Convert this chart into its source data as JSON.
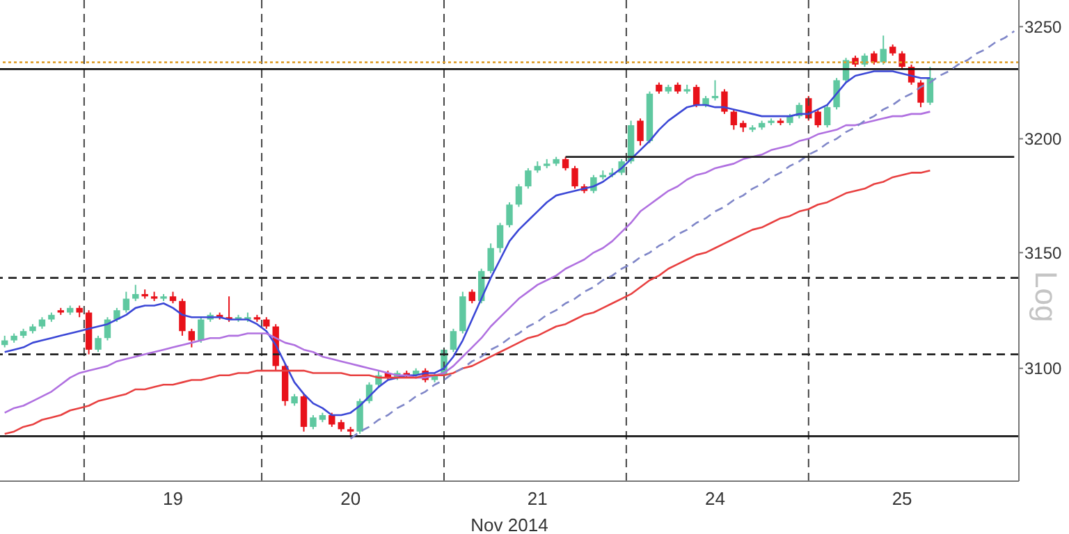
{
  "chart_data": {
    "type": "candlestick",
    "xlabel": "Nov 2014",
    "log": true,
    "annotations": [
      "Log"
    ],
    "categories": [
      null,
      null,
      null,
      null,
      null,
      null,
      null,
      null,
      null,
      null,
      null,
      null,
      null,
      null,
      null,
      null,
      null,
      null,
      "19",
      null,
      null,
      null,
      null,
      null,
      null,
      null,
      null,
      null,
      null,
      null,
      null,
      null,
      null,
      null,
      null,
      null,
      null,
      "20",
      null,
      null,
      null,
      null,
      null,
      null,
      null,
      null,
      null,
      null,
      null,
      null,
      null,
      null,
      null,
      null,
      null,
      null,
      null,
      "21",
      null,
      null,
      null,
      null,
      null,
      null,
      null,
      null,
      null,
      null,
      null,
      null,
      null,
      null,
      null,
      null,
      null,
      null,
      "24",
      null,
      null,
      null,
      null,
      null,
      null,
      null,
      null,
      null,
      null,
      null,
      null,
      null,
      null,
      null,
      null,
      null,
      null,
      null,
      "25",
      null,
      null,
      null,
      null,
      null,
      null,
      null,
      null,
      null,
      null,
      null,
      null
    ],
    "ylim": [
      3052,
      3262
    ],
    "yticks": [
      3100,
      3150,
      3200,
      3250
    ],
    "ohlc": [
      [
        3110,
        3114,
        3109,
        3112
      ],
      [
        3112,
        3115,
        3111,
        3114
      ],
      [
        3114,
        3117,
        3113,
        3116
      ],
      [
        3116,
        3119,
        3115,
        3118
      ],
      [
        3118,
        3122,
        3117,
        3121
      ],
      [
        3121,
        3124,
        3120,
        3123
      ],
      [
        3125,
        3126,
        3123,
        3124
      ],
      [
        3124,
        3127,
        3123,
        3126
      ],
      [
        3126,
        3127,
        3122,
        3124
      ],
      [
        3124,
        3125,
        3106,
        3108
      ],
      [
        3108,
        3114,
        3107,
        3113
      ],
      [
        3113,
        3122,
        3112,
        3121
      ],
      [
        3121,
        3126,
        3120,
        3125
      ],
      [
        3125,
        3133,
        3124,
        3130
      ],
      [
        3130,
        3136,
        3129,
        3132
      ],
      [
        3132,
        3134,
        3130,
        3131
      ],
      [
        3131,
        3133,
        3129,
        3130
      ],
      [
        3130,
        3132,
        3129,
        3131
      ],
      [
        3131,
        3133,
        3128,
        3129
      ],
      [
        3129,
        3130,
        3114,
        3116
      ],
      [
        3116,
        3117,
        3109,
        3112
      ],
      [
        3112,
        3122,
        3111,
        3121
      ],
      [
        3121,
        3124,
        3120,
        3123
      ],
      [
        3123,
        3124,
        3121,
        3122
      ],
      [
        3122,
        3131,
        3120,
        3121
      ],
      [
        3121,
        3123,
        3120,
        3122
      ],
      [
        3121,
        3124,
        3120,
        3122
      ],
      [
        3122,
        3123,
        3120,
        3121
      ],
      [
        3121,
        3122,
        3117,
        3118
      ],
      [
        3118,
        3119,
        3099,
        3101
      ],
      [
        3101,
        3102,
        3084,
        3086
      ],
      [
        3085,
        3089,
        3084,
        3088
      ],
      [
        3088,
        3089,
        3073,
        3075
      ],
      [
        3075,
        3080,
        3074,
        3079
      ],
      [
        3078,
        3081,
        3077,
        3080
      ],
      [
        3080,
        3081,
        3075,
        3076
      ],
      [
        3077,
        3078,
        3073,
        3074
      ],
      [
        3074,
        3075,
        3071,
        3073
      ],
      [
        3073,
        3087,
        3072,
        3086
      ],
      [
        3086,
        3094,
        3085,
        3093
      ],
      [
        3093,
        3099,
        3092,
        3097
      ],
      [
        3098,
        3099,
        3095,
        3096
      ],
      [
        3096,
        3099,
        3095,
        3098
      ],
      [
        3098,
        3099,
        3096,
        3097
      ],
      [
        3097,
        3100,
        3096,
        3099
      ],
      [
        3099,
        3100,
        3094,
        3095
      ],
      [
        3095,
        3098,
        3094,
        3097
      ],
      [
        3097,
        3109,
        3096,
        3108
      ],
      [
        3108,
        3117,
        3107,
        3116
      ],
      [
        3116,
        3133,
        3115,
        3131
      ],
      [
        3133,
        3134,
        3128,
        3129
      ],
      [
        3129,
        3143,
        3128,
        3142
      ],
      [
        3142,
        3154,
        3141,
        3152
      ],
      [
        3152,
        3163,
        3150,
        3162
      ],
      [
        3162,
        3172,
        3161,
        3171
      ],
      [
        3171,
        3180,
        3170,
        3179
      ],
      [
        3179,
        3187,
        3178,
        3186
      ],
      [
        3186,
        3190,
        3185,
        3188
      ],
      [
        3188,
        3191,
        3187,
        3189
      ],
      [
        3189,
        3192,
        3188,
        3191
      ],
      [
        3191,
        3192,
        3186,
        3187
      ],
      [
        3187,
        3188,
        3178,
        3179
      ],
      [
        3179,
        3180,
        3176,
        3177
      ],
      [
        3177,
        3184,
        3176,
        3183
      ],
      [
        3183,
        3186,
        3182,
        3184
      ],
      [
        3184,
        3187,
        3183,
        3185
      ],
      [
        3185,
        3191,
        3184,
        3190
      ],
      [
        3190,
        3208,
        3189,
        3206
      ],
      [
        3208,
        3209,
        3197,
        3199
      ],
      [
        3199,
        3221,
        3198,
        3220
      ],
      [
        3224,
        3225,
        3220,
        3221
      ],
      [
        3221,
        3224,
        3220,
        3223
      ],
      [
        3224,
        3225,
        3220,
        3221
      ],
      [
        3221,
        3224,
        3220,
        3222
      ],
      [
        3223,
        3224,
        3214,
        3215
      ],
      [
        3215,
        3219,
        3214,
        3218
      ],
      [
        3218,
        3226,
        3217,
        3219
      ],
      [
        3221,
        3222,
        3211,
        3212
      ],
      [
        3212,
        3213,
        3204,
        3206
      ],
      [
        3207,
        3208,
        3203,
        3205
      ],
      [
        3204,
        3206,
        3203,
        3205
      ],
      [
        3205,
        3208,
        3204,
        3207
      ],
      [
        3207,
        3209,
        3206,
        3208
      ],
      [
        3208,
        3209,
        3206,
        3207
      ],
      [
        3207,
        3211,
        3206,
        3210
      ],
      [
        3210,
        3216,
        3209,
        3215
      ],
      [
        3218,
        3219,
        3208,
        3209
      ],
      [
        3212,
        3213,
        3205,
        3206
      ],
      [
        3206,
        3215,
        3205,
        3214
      ],
      [
        3214,
        3227,
        3213,
        3226
      ],
      [
        3226,
        3236,
        3225,
        3235
      ],
      [
        3236,
        3237,
        3232,
        3233
      ],
      [
        3233,
        3238,
        3232,
        3237
      ],
      [
        3238,
        3239,
        3233,
        3234
      ],
      [
        3234,
        3246,
        3233,
        3240
      ],
      [
        3241,
        3242,
        3237,
        3238
      ],
      [
        3238,
        3239,
        3231,
        3232
      ],
      [
        3232,
        3233,
        3224,
        3225
      ],
      [
        3225,
        3226,
        3214,
        3216
      ],
      [
        3216,
        3232,
        3215,
        3227
      ],
      null,
      null,
      null,
      null,
      null,
      null,
      null,
      null,
      null
    ],
    "colors": [
      "#5fc8a0",
      "#5fc8a0",
      "#5fc8a0",
      "#5fc8a0",
      "#5fc8a0",
      "#5fc8a0",
      "#e8121a",
      "#5fc8a0",
      "#e8121a",
      "#e8121a",
      "#5fc8a0",
      "#5fc8a0",
      "#5fc8a0",
      "#5fc8a0",
      "#5fc8a0",
      "#e8121a",
      "#e8121a",
      "#5fc8a0",
      "#e8121a",
      "#e8121a",
      "#e8121a",
      "#5fc8a0",
      "#5fc8a0",
      "#e8121a",
      "#e8121a",
      "#5fc8a0",
      "#5fc8a0",
      "#e8121a",
      "#e8121a",
      "#e8121a",
      "#e8121a",
      "#5fc8a0",
      "#e8121a",
      "#5fc8a0",
      "#5fc8a0",
      "#e8121a",
      "#e8121a",
      "#e8121a",
      "#5fc8a0",
      "#5fc8a0",
      "#5fc8a0",
      "#e8121a",
      "#5fc8a0",
      "#e8121a",
      "#5fc8a0",
      "#e8121a",
      "#5fc8a0",
      "#5fc8a0",
      "#5fc8a0",
      "#5fc8a0",
      "#e8121a",
      "#5fc8a0",
      "#5fc8a0",
      "#5fc8a0",
      "#5fc8a0",
      "#5fc8a0",
      "#5fc8a0",
      "#5fc8a0",
      "#5fc8a0",
      "#5fc8a0",
      "#e8121a",
      "#e8121a",
      "#e8121a",
      "#5fc8a0",
      "#5fc8a0",
      "#5fc8a0",
      "#5fc8a0",
      "#5fc8a0",
      "#e8121a",
      "#5fc8a0",
      "#e8121a",
      "#5fc8a0",
      "#e8121a",
      "#5fc8a0",
      "#e8121a",
      "#5fc8a0",
      "#5fc8a0",
      "#e8121a",
      "#e8121a",
      "#e8121a",
      "#5fc8a0",
      "#5fc8a0",
      "#5fc8a0",
      "#e8121a",
      "#5fc8a0",
      "#5fc8a0",
      "#e8121a",
      "#e8121a",
      "#5fc8a0",
      "#5fc8a0",
      "#5fc8a0",
      "#e8121a",
      "#5fc8a0",
      "#e8121a",
      "#5fc8a0",
      "#e8121a",
      "#e8121a",
      "#e8121a",
      "#e8121a",
      "#5fc8a0",
      null,
      null,
      null,
      null,
      null,
      null,
      null,
      null,
      null
    ],
    "series": [
      {
        "type": "line",
        "color": "#3b47d6",
        "values": [
          3107,
          3108,
          3109,
          3111,
          3112,
          3113,
          3114,
          3115,
          3116,
          3117,
          3118,
          3119,
          3121,
          3123,
          3126,
          3127,
          3127,
          3128,
          3126,
          3123,
          3122,
          3122,
          3122,
          3122,
          3121,
          3121,
          3121,
          3119,
          3116,
          3110,
          3102,
          3094,
          3089,
          3085,
          3083,
          3080,
          3080,
          3081,
          3084,
          3088,
          3092,
          3095,
          3096,
          3097,
          3097,
          3098,
          3098,
          3100,
          3105,
          3112,
          3121,
          3130,
          3139,
          3147,
          3155,
          3160,
          3164,
          3168,
          3172,
          3175,
          3176,
          3177,
          3178,
          3179,
          3181,
          3184,
          3187,
          3191,
          3195,
          3199,
          3204,
          3208,
          3211,
          3214,
          3215,
          3215,
          3214,
          3214,
          3213,
          3212,
          3211,
          3210,
          3210,
          3210,
          3210,
          3211,
          3211,
          3213,
          3215,
          3220,
          3225,
          3228,
          3229,
          3230,
          3230,
          3230,
          3229,
          3228,
          3227,
          3227,
          null,
          null,
          null,
          null,
          null,
          null,
          null,
          null,
          null
        ]
      },
      {
        "type": "line",
        "color": "#b070e0",
        "values": [
          3081,
          3083,
          3084,
          3086,
          3088,
          3090,
          3093,
          3096,
          3098,
          3099,
          3100,
          3101,
          3103,
          3104,
          3105,
          3106,
          3107,
          3108,
          3109,
          3110,
          3111,
          3112,
          3113,
          3113,
          3114,
          3114,
          3115,
          3115,
          3115,
          3113,
          3111,
          3110,
          3108,
          3107,
          3105,
          3104,
          3103,
          3102,
          3101,
          3100,
          3099,
          3098,
          3097,
          3097,
          3096,
          3096,
          3097,
          3098,
          3101,
          3105,
          3109,
          3113,
          3118,
          3122,
          3126,
          3130,
          3133,
          3136,
          3138,
          3140,
          3143,
          3145,
          3147,
          3150,
          3152,
          3155,
          3159,
          3163,
          3168,
          3171,
          3174,
          3177,
          3179,
          3182,
          3184,
          3185,
          3187,
          3188,
          3189,
          3191,
          3192,
          3193,
          3195,
          3196,
          3197,
          3199,
          3200,
          3202,
          3203,
          3204,
          3206,
          3206,
          3207,
          3208,
          3209,
          3210,
          3210,
          3211,
          3211,
          3212,
          null,
          null,
          null,
          null,
          null,
          null,
          null,
          null,
          null
        ]
      },
      {
        "type": "line",
        "color": "#e84040",
        "values": [
          3072,
          3073,
          3075,
          3076,
          3078,
          3079,
          3080,
          3082,
          3083,
          3084,
          3086,
          3087,
          3088,
          3089,
          3091,
          3091,
          3092,
          3093,
          3093,
          3094,
          3095,
          3095,
          3096,
          3097,
          3097,
          3098,
          3098,
          3099,
          3099,
          3099,
          3099,
          3099,
          3099,
          3098,
          3098,
          3098,
          3098,
          3097,
          3097,
          3097,
          3096,
          3096,
          3096,
          3096,
          3096,
          3097,
          3097,
          3097,
          3098,
          3100,
          3101,
          3103,
          3105,
          3107,
          3109,
          3111,
          3113,
          3114,
          3116,
          3118,
          3119,
          3121,
          3123,
          3124,
          3126,
          3128,
          3130,
          3132,
          3135,
          3138,
          3140,
          3143,
          3145,
          3147,
          3149,
          3150,
          3152,
          3154,
          3156,
          3158,
          3160,
          3161,
          3163,
          3165,
          3166,
          3168,
          3169,
          3171,
          3172,
          3174,
          3176,
          3177,
          3178,
          3180,
          3181,
          3183,
          3184,
          3185,
          3185,
          3186,
          null,
          null,
          null,
          null,
          null,
          null,
          null,
          null,
          null
        ]
      },
      {
        "type": "line",
        "color": "#7f86c8",
        "line_style": "dashed",
        "values": [
          null,
          null,
          null,
          null,
          null,
          null,
          null,
          null,
          null,
          null,
          null,
          null,
          null,
          null,
          null,
          null,
          null,
          null,
          null,
          null,
          null,
          null,
          null,
          null,
          null,
          null,
          null,
          null,
          null,
          null,
          null,
          null,
          null,
          null,
          null,
          null,
          null,
          3070,
          3073,
          3075,
          3078,
          3080,
          3083,
          3085,
          3088,
          3090,
          3093,
          3095,
          3098,
          3100,
          3103,
          3105,
          3108,
          3110,
          3113,
          3115,
          3118,
          3120,
          3123,
          3125,
          3128,
          3130,
          3133,
          3135,
          3138,
          3140,
          3143,
          3145,
          3148,
          3150,
          3153,
          3155,
          3158,
          3160,
          3163,
          3165,
          3168,
          3170,
          3173,
          3175,
          3178,
          3180,
          3183,
          3185,
          3188,
          3190,
          3193,
          3195,
          3198,
          3200,
          3203,
          3205,
          3208,
          3210,
          3213,
          3215,
          3218,
          3220,
          3223,
          3225,
          3228,
          3230,
          3233,
          3235,
          3238,
          3240,
          3243,
          3245,
          3248
        ]
      },
      {
        "type": "line",
        "color": "#222222",
        "values": [
          null,
          null,
          null,
          null,
          null,
          null,
          null,
          null,
          null,
          null,
          null,
          null,
          null,
          null,
          null,
          null,
          null,
          null,
          null,
          null,
          null,
          null,
          null,
          null,
          null,
          null,
          null,
          null,
          null,
          null,
          null,
          null,
          null,
          null,
          null,
          null,
          null,
          null,
          null,
          null,
          null,
          null,
          null,
          null,
          null,
          null,
          null,
          null,
          null,
          null,
          null,
          null,
          null,
          null,
          null,
          null,
          null,
          null,
          null,
          null,
          3192,
          3192,
          3192,
          3192,
          3192,
          3192,
          3192,
          3192,
          3192,
          3192,
          3192,
          3192,
          3192,
          3192,
          3192,
          3192,
          3192,
          3192,
          3192,
          3192,
          3192,
          3192,
          3192,
          3192,
          3192,
          3192,
          3192,
          3192,
          3192,
          3192,
          3192,
          3192,
          3192,
          3192,
          3192,
          3192,
          3192,
          3192,
          3192,
          3192,
          3192,
          3192,
          3192,
          3192,
          3192,
          3192,
          3192,
          3192,
          3192
        ]
      }
    ],
    "ref_lines": [
      {
        "axis": "y",
        "value": 3139,
        "color": "#222222",
        "line_style": "dashed"
      },
      {
        "axis": "y",
        "value": 3106,
        "color": "#222222",
        "line_style": "dashed"
      },
      {
        "axis": "y",
        "value": 3234,
        "color": "#e0a030",
        "line_style": "dotted"
      },
      {
        "axis": "y",
        "value": 3231,
        "color": "#111111",
        "line_style": "solid"
      },
      {
        "axis": "y",
        "value": 3071,
        "color": "#111111",
        "line_style": "solid"
      }
    ]
  }
}
